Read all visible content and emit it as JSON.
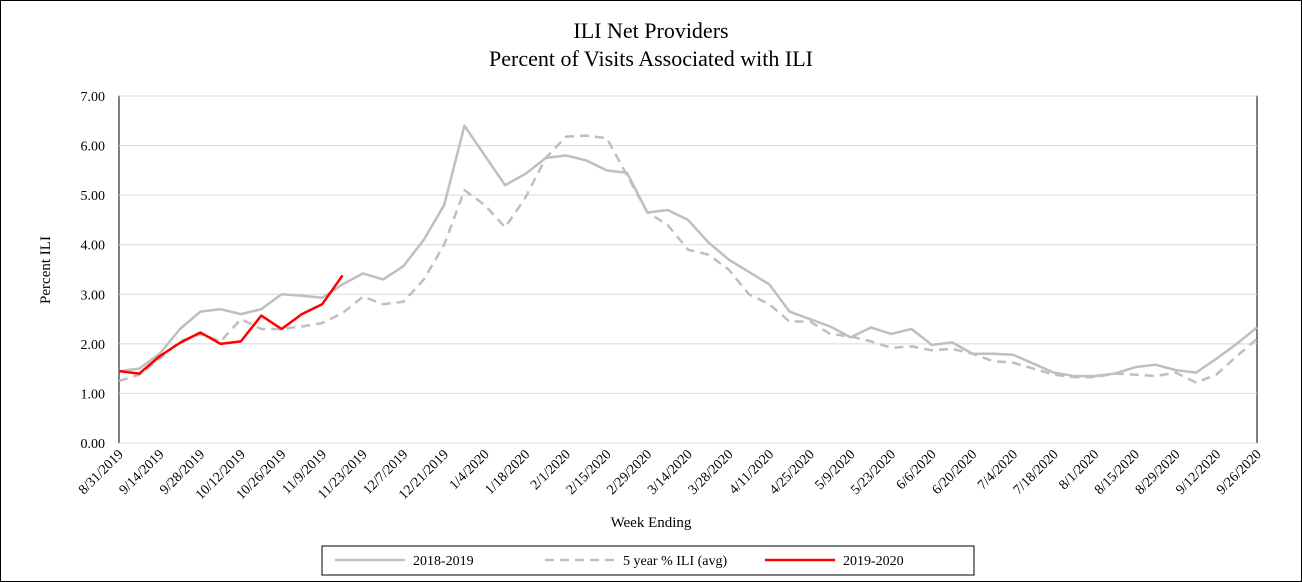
{
  "chart_data": {
    "type": "line",
    "title": "ILI Net Providers",
    "subtitle": "Percent of Visits Associated with ILI",
    "x_label": "Week Ending",
    "y_label": "Percent ILI",
    "categories": [
      "8/31/2019",
      null,
      "9/14/2019",
      null,
      "9/28/2019",
      null,
      "10/12/2019",
      null,
      "10/26/2019",
      null,
      "11/9/2019",
      null,
      "11/23/2019",
      null,
      "12/7/2019",
      null,
      "12/21/2019",
      null,
      "1/4/2020",
      null,
      "1/18/2020",
      null,
      "2/1/2020",
      null,
      "2/15/2020",
      null,
      "2/29/2020",
      null,
      "3/14/2020",
      null,
      "3/28/2020",
      null,
      "4/11/2020",
      null,
      "4/25/2020",
      null,
      "5/9/2020",
      null,
      "5/23/2020",
      null,
      "6/6/2020",
      null,
      "6/20/2020",
      null,
      "7/4/2020",
      null,
      "7/18/2020",
      null,
      "8/1/2020",
      null,
      "8/15/2020",
      null,
      "8/29/2020",
      null,
      "9/12/2020",
      null,
      "9/26/2020"
    ],
    "series": [
      {
        "name": "2018-2019",
        "color": "#bfbfbf",
        "dashed": false,
        "values": [
          1.45,
          1.5,
          1.8,
          2.3,
          2.65,
          2.7,
          2.6,
          2.7,
          3.0,
          2.97,
          2.93,
          3.2,
          3.42,
          3.3,
          3.57,
          4.1,
          4.8,
          6.4,
          5.8,
          5.2,
          5.43,
          5.75,
          5.8,
          5.7,
          5.5,
          5.45,
          4.65,
          4.7,
          4.5,
          4.05,
          3.7,
          3.45,
          3.2,
          2.65,
          2.5,
          2.35,
          2.13,
          2.33,
          2.2,
          2.3,
          1.98,
          2.03,
          1.8,
          1.8,
          1.78,
          1.6,
          1.42,
          1.35,
          1.35,
          1.4,
          1.53,
          1.58,
          1.47,
          1.42,
          1.7,
          2.0,
          2.33
        ]
      },
      {
        "name": "5 year % ILI (avg)",
        "color": "#bfbfbf",
        "dashed": true,
        "values": [
          1.25,
          1.38,
          1.7,
          2.05,
          2.2,
          2.05,
          2.5,
          2.3,
          2.3,
          2.35,
          2.42,
          2.62,
          2.95,
          2.8,
          2.85,
          3.3,
          4.0,
          5.1,
          4.8,
          4.35,
          4.95,
          5.75,
          6.18,
          6.2,
          6.15,
          5.4,
          4.65,
          4.4,
          3.9,
          3.8,
          3.5,
          3.0,
          2.8,
          2.45,
          2.45,
          2.2,
          2.15,
          2.05,
          1.92,
          1.95,
          1.87,
          1.9,
          1.8,
          1.65,
          1.62,
          1.5,
          1.38,
          1.33,
          1.33,
          1.4,
          1.38,
          1.35,
          1.42,
          1.22,
          1.38,
          1.75,
          2.1
        ]
      },
      {
        "name": "2019-2020",
        "color": "#ff0000",
        "dashed": false,
        "values": [
          1.45,
          1.4,
          1.75,
          2.02,
          2.23,
          2.0,
          2.05,
          2.57,
          2.3,
          2.6,
          2.8,
          3.38,
          null,
          null,
          null,
          null,
          null,
          null,
          null,
          null,
          null,
          null,
          null,
          null,
          null,
          null,
          null,
          null,
          null,
          null,
          null,
          null,
          null,
          null,
          null,
          null,
          null,
          null,
          null,
          null,
          null,
          null,
          null,
          null,
          null,
          null,
          null,
          null,
          null,
          null,
          null,
          null,
          null,
          null,
          null,
          null,
          null
        ]
      }
    ],
    "ylim": [
      0,
      7
    ],
    "yticks": [
      {
        "value": 0,
        "label": "0.00"
      },
      {
        "value": 1,
        "label": "1.00"
      },
      {
        "value": 2,
        "label": "2.00"
      },
      {
        "value": 3,
        "label": "3.00"
      },
      {
        "value": 4,
        "label": "4.00"
      },
      {
        "value": 5,
        "label": "5.00"
      },
      {
        "value": 6,
        "label": "6.00"
      },
      {
        "value": 7,
        "label": "7.00"
      }
    ],
    "grid": true,
    "legend": "bottom"
  }
}
